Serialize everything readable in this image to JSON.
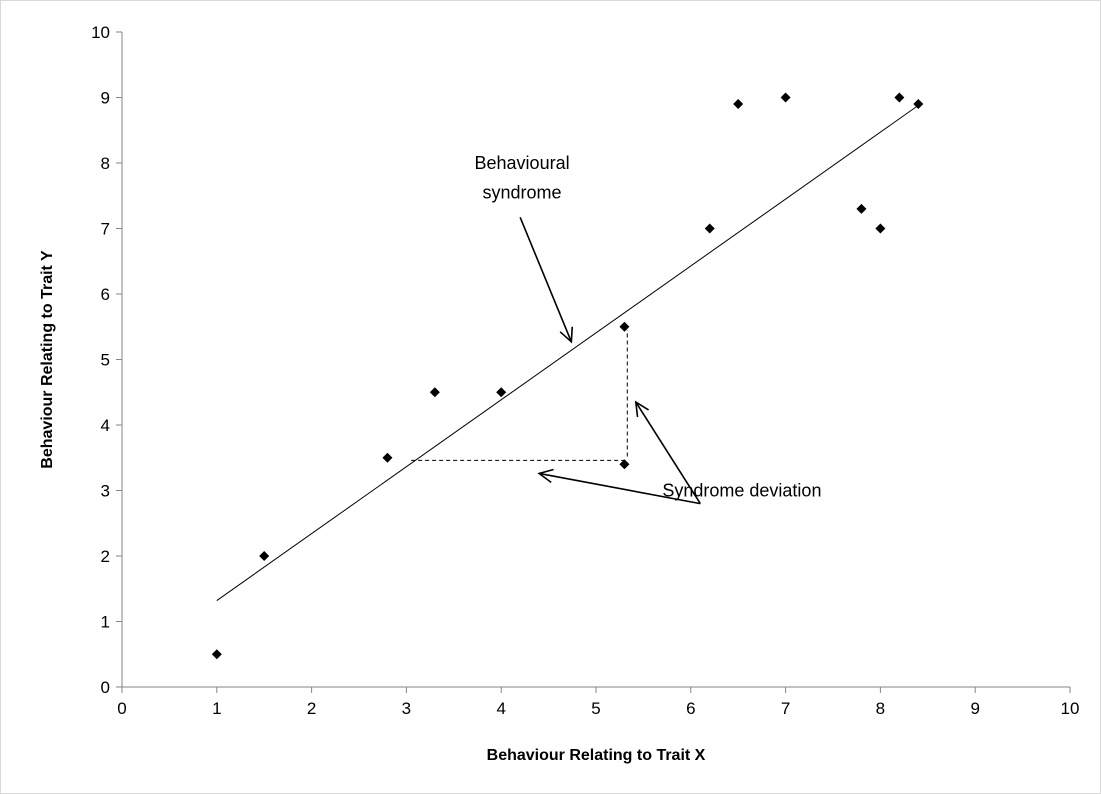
{
  "chart_data": {
    "type": "scatter",
    "title": "",
    "xlabel": "Behaviour Relating to Trait X",
    "ylabel": "Behaviour Relating to Trait Y",
    "xlim": [
      0,
      10
    ],
    "ylim": [
      0,
      10
    ],
    "xticks": [
      "0",
      "1",
      "2",
      "3",
      "4",
      "5",
      "6",
      "7",
      "8",
      "9",
      "10"
    ],
    "yticks": [
      "0",
      "1",
      "2",
      "3",
      "4",
      "5",
      "6",
      "7",
      "8",
      "9",
      "10"
    ],
    "grid": false,
    "legend": "none",
    "marker": "diamond",
    "marker_color": "#000000",
    "points": [
      {
        "x": 1.0,
        "y": 0.5
      },
      {
        "x": 1.5,
        "y": 2.0
      },
      {
        "x": 2.8,
        "y": 3.5
      },
      {
        "x": 3.3,
        "y": 4.5
      },
      {
        "x": 4.0,
        "y": 4.5
      },
      {
        "x": 5.3,
        "y": 5.5
      },
      {
        "x": 5.3,
        "y": 3.4
      },
      {
        "x": 6.2,
        "y": 7.0
      },
      {
        "x": 6.5,
        "y": 8.9
      },
      {
        "x": 7.0,
        "y": 9.0
      },
      {
        "x": 7.8,
        "y": 7.3
      },
      {
        "x": 8.0,
        "y": 7.0
      },
      {
        "x": 8.2,
        "y": 9.0
      },
      {
        "x": 8.4,
        "y": 8.9
      }
    ],
    "trend_line": {
      "x1": 1.0,
      "y1": 1.32,
      "x2": 8.4,
      "y2": 8.88
    },
    "deviation_lines": [
      {
        "x1": 3.05,
        "y1": 3.46,
        "x2": 5.3,
        "y2": 3.46
      },
      {
        "x1": 5.33,
        "y1": 3.52,
        "x2": 5.33,
        "y2": 5.45
      }
    ],
    "annotations": {
      "syndrome_line1": "Behavioural",
      "syndrome_line2": "syndrome",
      "deviation": "Syndrome deviation"
    },
    "arrows": [
      {
        "x1": 4.2,
        "y1": 7.17,
        "x2": 4.74,
        "y2": 5.27
      },
      {
        "x1": 6.1,
        "y1": 2.8,
        "x2": 4.4,
        "y2": 3.26
      },
      {
        "x1": 6.1,
        "y1": 2.8,
        "x2": 5.42,
        "y2": 4.35
      }
    ],
    "text_positions": {
      "syndrome_line1": {
        "x": 4.22,
        "y": 8.0
      },
      "syndrome_line2": {
        "x": 4.22,
        "y": 7.55
      },
      "deviation": {
        "x": 5.7,
        "y": 3.0
      }
    }
  }
}
